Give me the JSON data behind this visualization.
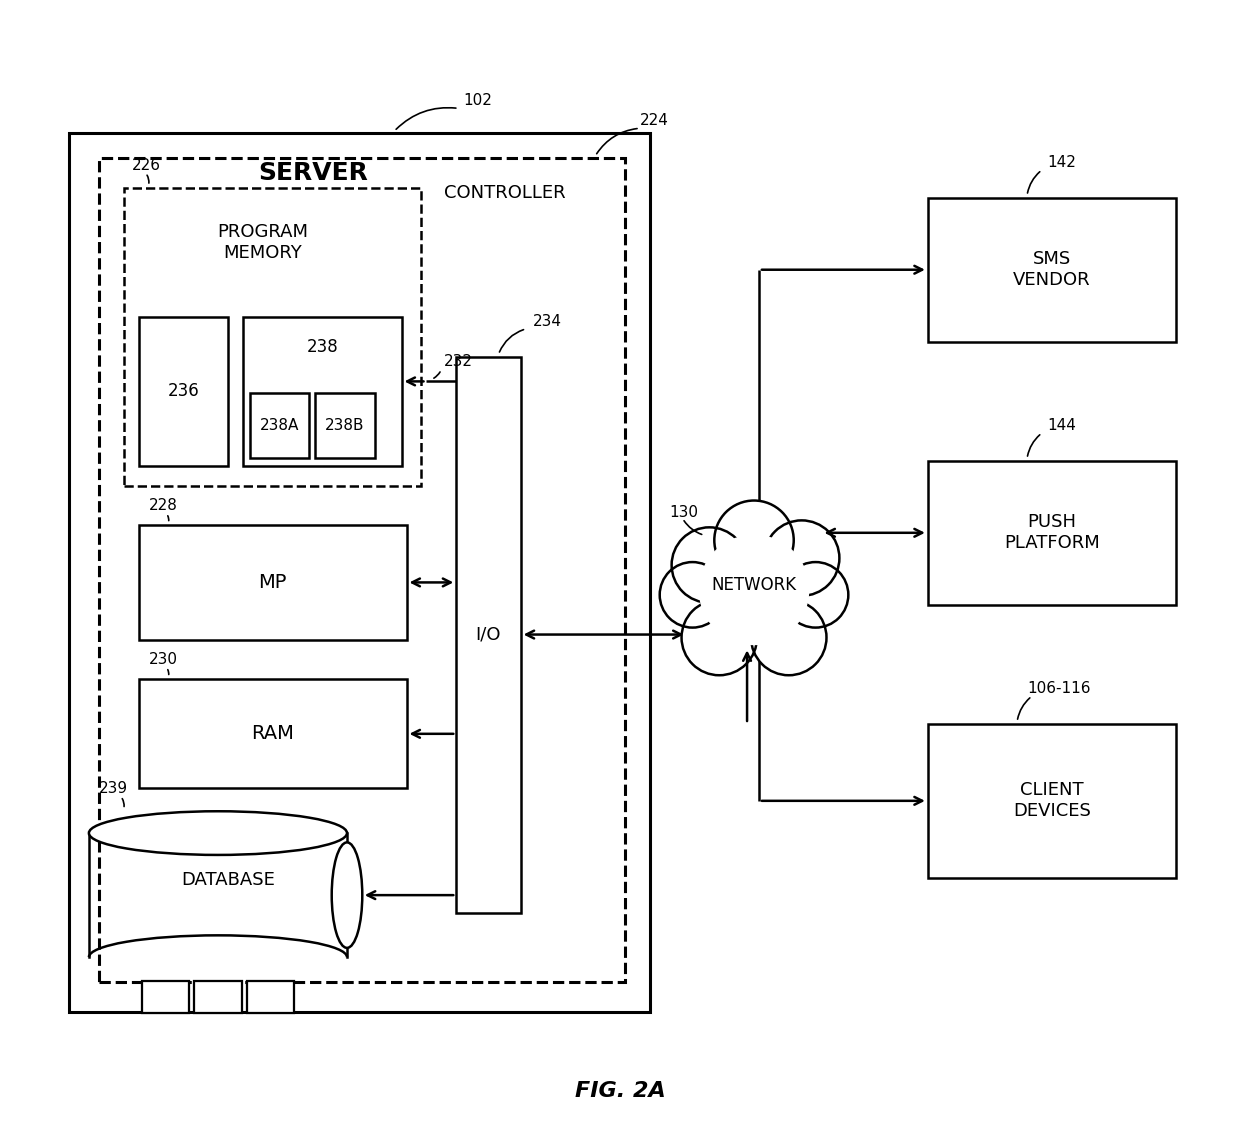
{
  "title": "FIG. 2A",
  "bg": "#ffffff",
  "fw": 12.4,
  "fh": 11.45,
  "lw": 1.8,
  "lw_thick": 2.2,
  "fs_main": 13,
  "fs_ref": 11,
  "fs_title": 16,
  "fs_server": 18,
  "labels": {
    "server": "SERVER",
    "controller": "CONTROLLER",
    "prog_mem": "PROGRAM\nMEMORY",
    "mp": "MP",
    "ram": "RAM",
    "database": "DATABASE",
    "io": "I/O",
    "network": "NETWORK",
    "sms_vendor": "SMS\nVENDOR",
    "push_platform": "PUSH\nPLATFORM",
    "client_devices": "CLIENT\nDEVICES",
    "r102": "102",
    "r224": "224",
    "r226": "226",
    "r228": "228",
    "r230": "230",
    "r232": "232",
    "r234": "234",
    "r236": "236",
    "r238": "238",
    "r238a": "238A",
    "r238b": "238B",
    "r239": "239",
    "r130": "130",
    "r142": "142",
    "r144": "144",
    "r106": "106-116",
    "title": "FIG. 2A"
  }
}
